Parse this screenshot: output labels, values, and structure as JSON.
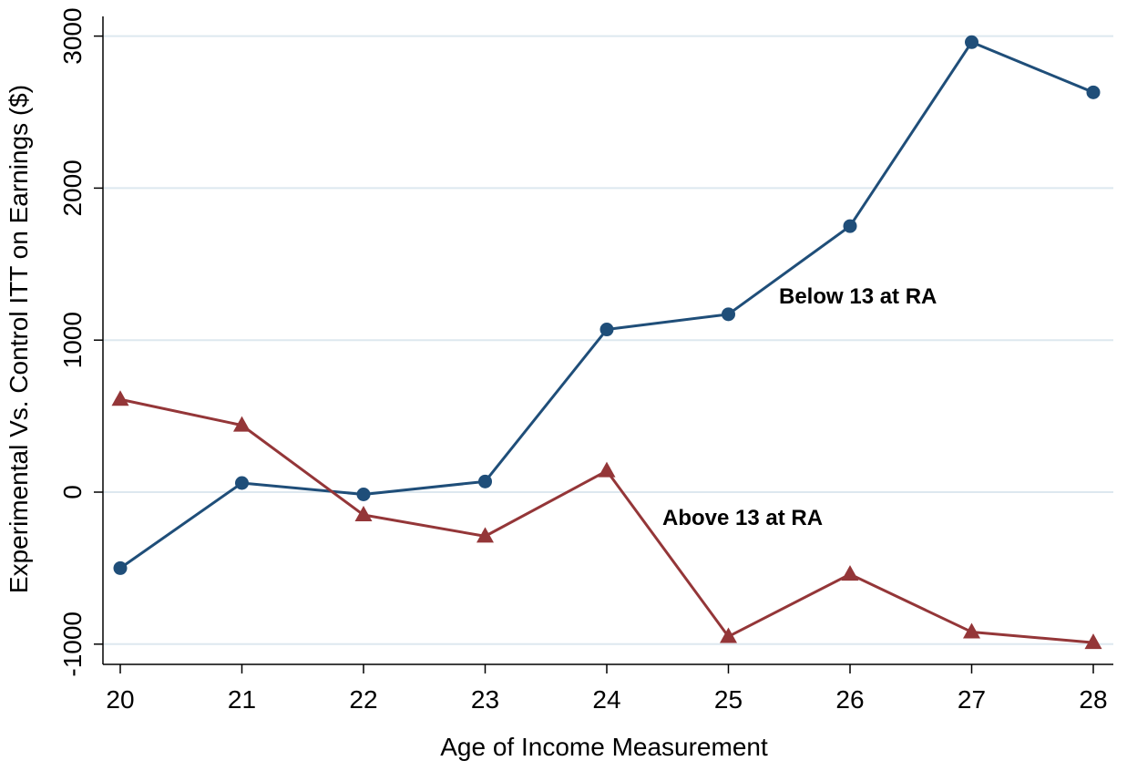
{
  "chart_data": {
    "type": "line",
    "title": "",
    "xlabel": "Age of Income Measurement",
    "ylabel": "Experimental Vs. Control ITT on Earnings ($)",
    "x": [
      20,
      21,
      22,
      23,
      24,
      25,
      26,
      27,
      28
    ],
    "xticks": [
      "20",
      "21",
      "22",
      "23",
      "24",
      "25",
      "26",
      "27",
      "28"
    ],
    "yticks": [
      "-1000",
      "0",
      "1000",
      "2000",
      "3000"
    ],
    "ytick_values": [
      -1000,
      0,
      1000,
      2000,
      3000
    ],
    "xlim": [
      20,
      28
    ],
    "ylim": [
      -1200,
      3050
    ],
    "grid": "horizontal",
    "legend": "none",
    "series": [
      {
        "name": "Below 13 at RA",
        "marker": "circle",
        "color": "#1f4e79",
        "values": [
          -500,
          60,
          -15,
          70,
          1070,
          1170,
          1750,
          2960,
          2630
        ]
      },
      {
        "name": "Above 13 at RA",
        "marker": "triangle",
        "color": "#943638",
        "values": [
          610,
          440,
          -150,
          -290,
          140,
          -950,
          -540,
          -920,
          -990
        ]
      }
    ],
    "gridline_color": "#dde8ef"
  }
}
